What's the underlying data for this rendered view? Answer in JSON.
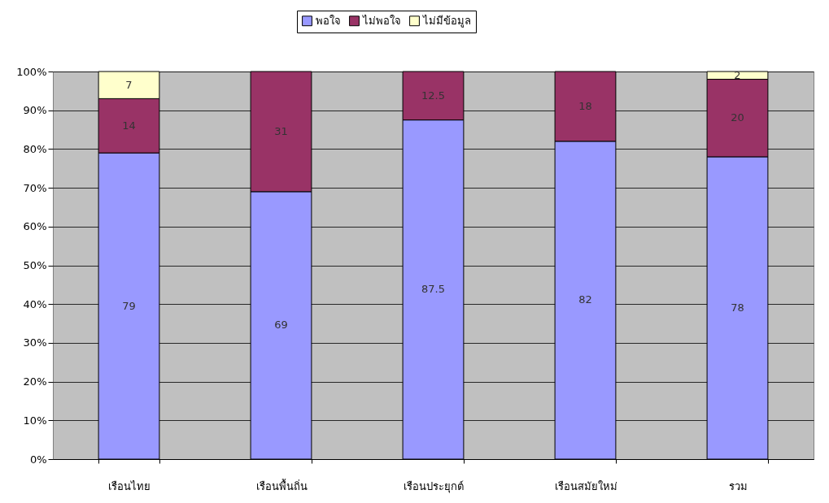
{
  "chart_data": {
    "type": "bar",
    "stacked": true,
    "categories": [
      "เรือนไทย",
      "เรือนพื้นถิ่น",
      "เรือนประยุกต์",
      "เรือนสมัยใหม่",
      "รวม"
    ],
    "series": [
      {
        "name": "พอใจ",
        "color": "#9999ff",
        "values": [
          79,
          69,
          87.5,
          82,
          78
        ]
      },
      {
        "name": "ไม่พอใจ",
        "color": "#993366",
        "values": [
          14,
          31,
          12.5,
          18,
          20
        ]
      },
      {
        "name": "ไม่มีข้อมูล",
        "color": "#ffffcc",
        "values": [
          7,
          null,
          null,
          null,
          2
        ]
      }
    ],
    "ylim": [
      0,
      100
    ],
    "yticks": [
      {
        "value": 0,
        "label": "0%"
      },
      {
        "value": 10,
        "label": "10%"
      },
      {
        "value": 20,
        "label": "20%"
      },
      {
        "value": 30,
        "label": "30%"
      },
      {
        "value": 40,
        "label": "40%"
      },
      {
        "value": 50,
        "label": "50%"
      },
      {
        "value": 60,
        "label": "60%"
      },
      {
        "value": 70,
        "label": "70%"
      },
      {
        "value": 80,
        "label": "80%"
      },
      {
        "value": 90,
        "label": "90%"
      },
      {
        "value": 100,
        "label": "100%"
      }
    ],
    "grid": "y",
    "legend": "top",
    "data_labels": true
  }
}
